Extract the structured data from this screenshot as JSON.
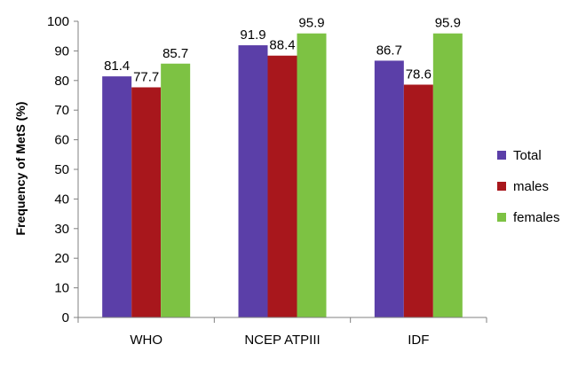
{
  "chart_data": {
    "type": "bar",
    "title": "",
    "xlabel": "",
    "ylabel": "Frequency of MetS (%)",
    "ylim": [
      0,
      100
    ],
    "yticks": [
      0,
      10,
      20,
      30,
      40,
      50,
      60,
      70,
      80,
      90,
      100
    ],
    "grid": false,
    "legend_position": "right",
    "categories": [
      "WHO",
      "NCEP ATPIII",
      "IDF"
    ],
    "series": [
      {
        "name": "Total",
        "color": "#5B3FA8",
        "values": [
          81.4,
          91.9,
          86.7
        ]
      },
      {
        "name": "males",
        "color": "#A8171C",
        "values": [
          77.7,
          88.4,
          78.6
        ]
      },
      {
        "name": "females",
        "color": "#7DC243",
        "values": [
          85.7,
          95.9,
          95.9
        ]
      }
    ]
  }
}
